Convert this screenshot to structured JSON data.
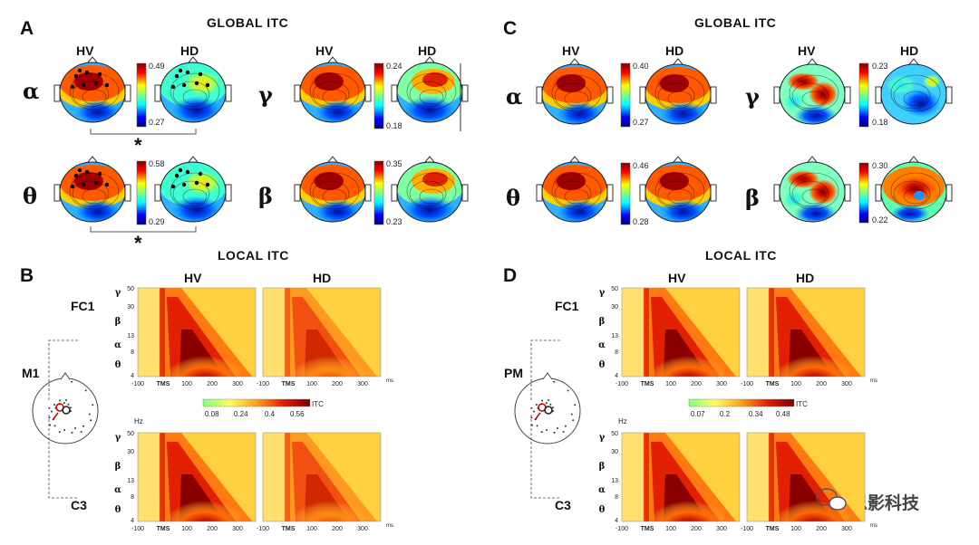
{
  "panels": [
    {
      "letter": "A",
      "title": "GLOBAL ITC"
    },
    {
      "letter": "B",
      "title": "LOCAL ITC"
    },
    {
      "letter": "C",
      "title": "GLOBAL ITC"
    },
    {
      "letter": "D",
      "title": "LOCAL ITC"
    }
  ],
  "conditions": {
    "hv": "HV",
    "hd": "HD"
  },
  "bands": {
    "alpha": "α",
    "gamma": "γ",
    "theta": "θ",
    "beta": "β"
  },
  "significance": "*",
  "colorbars": {
    "A": {
      "alpha": {
        "max": "0.49",
        "min": "0.27"
      },
      "gamma": {
        "max": "0.24",
        "min": "0.18"
      },
      "theta": {
        "max": "0.58",
        "min": "0.29"
      },
      "beta": {
        "max": "0.35",
        "min": "0.23"
      }
    },
    "C": {
      "alpha": {
        "max": "0.40",
        "min": "0.27"
      },
      "gamma": {
        "max": "0.23",
        "min": "0.18"
      },
      "theta": {
        "max": "0.46",
        "min": "0.28"
      },
      "beta": {
        "max": "0.30",
        "min": "0.22"
      }
    }
  },
  "local": {
    "B": {
      "top_electrode": "FC1",
      "bottom_electrode": "C3",
      "site": "M1",
      "colorbar_ticks": [
        "0.08",
        "0.24",
        "0.4",
        "0.56"
      ],
      "colorbar_label": "ITC"
    },
    "D": {
      "top_electrode": "FC1",
      "bottom_electrode": "C3",
      "site": "PM",
      "colorbar_ticks": [
        "0.07",
        "0.2",
        "0.34",
        "0.48"
      ],
      "colorbar_label": "ITC"
    }
  },
  "axes": {
    "y_bands": [
      "γ",
      "β",
      "α",
      "θ"
    ],
    "y_ticks": [
      "50",
      "30",
      "13",
      "8",
      "4"
    ],
    "y_unit": "Hz",
    "x_ticks": [
      "-100",
      "TMS",
      "100",
      "200",
      "300"
    ],
    "x_unit": "ms"
  },
  "watermark": "思影科技",
  "colors": {
    "hot_dark": "#8b0000",
    "hot_mid": "#ff4500",
    "hot_light": "#ffd700",
    "jet_blue": "#1e3cc8",
    "jet_red": "#c00000"
  }
}
